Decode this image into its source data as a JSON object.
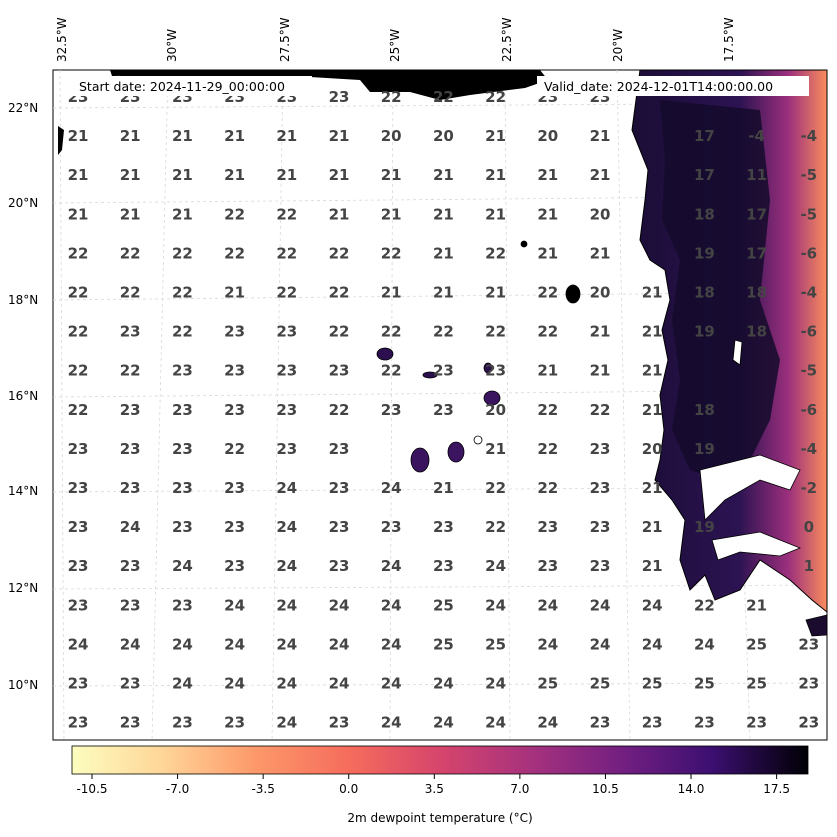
{
  "map": {
    "start_label": "Start date: 2024-11-29_00:00:00",
    "valid_label": "Valid_date: 2024-12-01T14:00:00.00",
    "lon_labels": [
      "32.5°W",
      "30°W",
      "27.5°W",
      "25°W",
      "22.5°W",
      "20°W",
      "17.5°W"
    ],
    "lat_labels": [
      "22°N",
      "20°N",
      "18°N",
      "16°N",
      "14°N",
      "12°N",
      "10°N"
    ],
    "colors": {
      "land_dark": "#120c2a",
      "land_mid": "#2a1050",
      "coast_warm": "#f48a5a",
      "grid": "#cccccc"
    }
  },
  "colorbar": {
    "label": "2m dewpoint temperature ($^\\circ$C)",
    "label_display": "2m dewpoint temperature (°C)",
    "ticks": [
      "-10.5",
      "-7.0",
      "-3.5",
      "0.0",
      "3.5",
      "7.0",
      "10.5",
      "14.0",
      "17.5"
    ],
    "colormap": "magma_r"
  },
  "grid_values": [
    [
      "23",
      "23",
      "23",
      "23",
      "23",
      "23",
      "22",
      "22",
      "22",
      "23",
      "23",
      "",
      "",
      ""
    ],
    [
      "21",
      "21",
      "21",
      "21",
      "21",
      "21",
      "20",
      "20",
      "21",
      "20",
      "21",
      "",
      "17",
      "-4",
      "-4"
    ],
    [
      "21",
      "21",
      "21",
      "21",
      "21",
      "21",
      "21",
      "21",
      "21",
      "21",
      "21",
      "",
      "17",
      "11",
      "-5"
    ],
    [
      "21",
      "21",
      "21",
      "22",
      "22",
      "21",
      "21",
      "21",
      "21",
      "21",
      "20",
      "",
      "18",
      "17",
      "-5"
    ],
    [
      "22",
      "22",
      "22",
      "22",
      "22",
      "22",
      "22",
      "21",
      "22",
      "21",
      "21",
      "",
      "19",
      "17",
      "-6"
    ],
    [
      "22",
      "22",
      "22",
      "21",
      "22",
      "22",
      "21",
      "21",
      "21",
      "22",
      "20",
      "21",
      "18",
      "18",
      "-4"
    ],
    [
      "22",
      "23",
      "22",
      "23",
      "23",
      "22",
      "22",
      "22",
      "22",
      "22",
      "21",
      "21",
      "19",
      "18",
      "-6"
    ],
    [
      "22",
      "22",
      "23",
      "23",
      "23",
      "23",
      "22",
      "23",
      "23",
      "21",
      "21",
      "21",
      "",
      "",
      "-5"
    ],
    [
      "22",
      "23",
      "23",
      "23",
      "23",
      "22",
      "23",
      "23",
      "20",
      "22",
      "22",
      "21",
      "18",
      "",
      "-6"
    ],
    [
      "23",
      "23",
      "23",
      "22",
      "23",
      "23",
      "",
      "",
      "21",
      "22",
      "23",
      "20",
      "19",
      "",
      "-4"
    ],
    [
      "23",
      "23",
      "23",
      "23",
      "24",
      "23",
      "24",
      "21",
      "22",
      "22",
      "23",
      "21",
      "",
      "",
      "-2"
    ],
    [
      "23",
      "24",
      "23",
      "23",
      "24",
      "23",
      "23",
      "23",
      "22",
      "23",
      "23",
      "21",
      "19",
      "",
      "0"
    ],
    [
      "23",
      "23",
      "24",
      "23",
      "24",
      "23",
      "24",
      "23",
      "24",
      "23",
      "23",
      "21",
      "",
      "",
      "1"
    ],
    [
      "23",
      "23",
      "23",
      "24",
      "24",
      "24",
      "24",
      "25",
      "24",
      "24",
      "24",
      "24",
      "22",
      "21",
      ""
    ],
    [
      "24",
      "24",
      "24",
      "24",
      "24",
      "24",
      "24",
      "25",
      "25",
      "24",
      "24",
      "24",
      "24",
      "25",
      "23"
    ],
    [
      "23",
      "23",
      "24",
      "24",
      "24",
      "24",
      "24",
      "24",
      "24",
      "25",
      "25",
      "25",
      "25",
      "25",
      "23"
    ],
    [
      "23",
      "23",
      "23",
      "23",
      "24",
      "23",
      "24",
      "24",
      "24",
      "24",
      "23",
      "23",
      "23",
      "23",
      "23"
    ]
  ]
}
